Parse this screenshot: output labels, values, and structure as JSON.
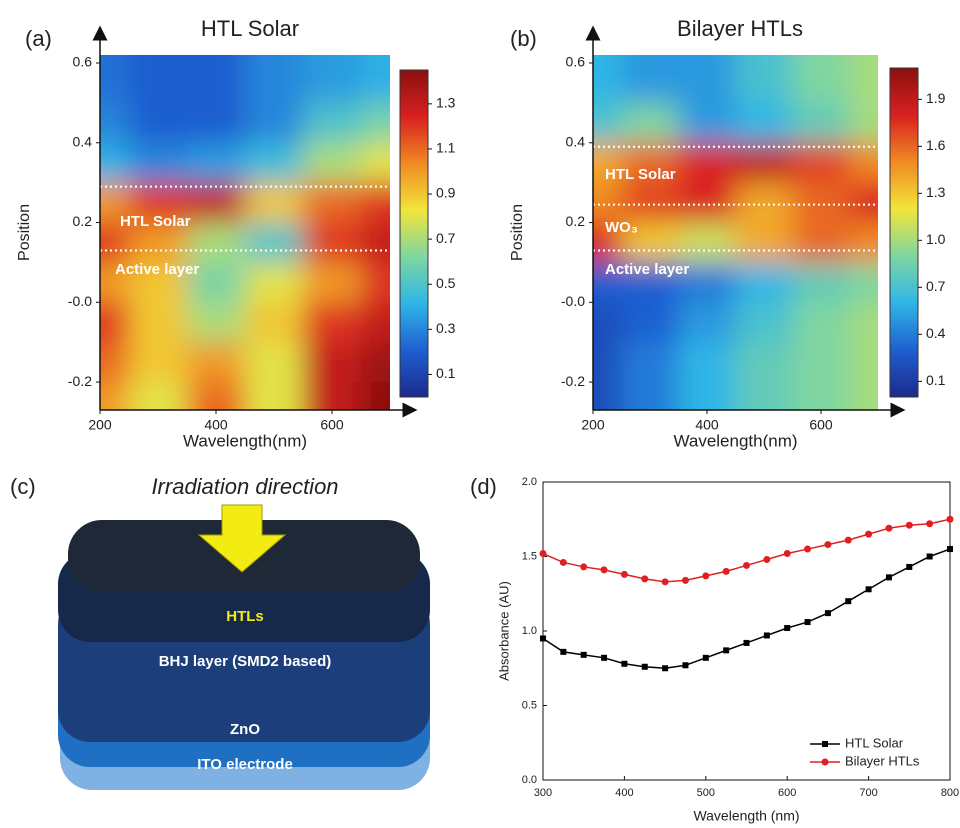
{
  "panels": [
    "(a)",
    "(b)",
    "(c)",
    "(d)"
  ],
  "chart_data": [
    {
      "type": "heatmap",
      "title": "HTL Solar",
      "xlabel": "Wavelength(nm)",
      "ylabel": "Position",
      "x": [
        200,
        300,
        400,
        500,
        600,
        700
      ],
      "y": [
        0.55,
        0.45,
        0.35,
        0.25,
        0.15,
        0.05,
        -0.05,
        -0.15,
        -0.25
      ],
      "z": [
        [
          0.25,
          0.2,
          0.2,
          0.3,
          0.35,
          0.4
        ],
        [
          0.3,
          0.2,
          0.2,
          0.3,
          0.5,
          0.6
        ],
        [
          0.4,
          0.3,
          0.35,
          0.45,
          0.7,
          0.8
        ],
        [
          1.0,
          1.2,
          1.3,
          0.9,
          1.1,
          1.2
        ],
        [
          1.2,
          1.0,
          0.7,
          0.5,
          1.2,
          1.3
        ],
        [
          1.0,
          0.9,
          0.6,
          0.8,
          1.0,
          1.2
        ],
        [
          1.2,
          0.9,
          0.7,
          0.9,
          1.2,
          1.3
        ],
        [
          1.1,
          0.9,
          1.0,
          0.8,
          1.3,
          1.4
        ],
        [
          1.0,
          0.8,
          1.1,
          0.8,
          1.3,
          1.45
        ]
      ],
      "xlim": [
        200,
        700
      ],
      "ylim": [
        -0.27,
        0.62
      ],
      "xticks": [
        200,
        400,
        600
      ],
      "yticks": [
        -0.2,
        {
          "value": 0,
          "label": "-0.0"
        },
        0.2,
        0.4,
        0.6
      ],
      "zlim": [
        0,
        1.45
      ],
      "zticks": [
        0.1,
        0.3,
        0.5,
        0.7,
        0.9,
        1.1,
        1.3
      ],
      "colors": [
        "#1c2a8c",
        "#1f5fd1",
        "#2fb6e6",
        "#7fd6a0",
        "#f2e53a",
        "#f08a22",
        "#d92020",
        "#8b1010"
      ],
      "annotations": [
        "HTL Solar",
        "Active layer"
      ],
      "boundaries": [
        0.29,
        0.13
      ]
    },
    {
      "type": "heatmap",
      "title": "Bilayer HTLs",
      "xlabel": "Wavelength(nm)",
      "ylabel": "Position",
      "x": [
        200,
        300,
        400,
        500,
        600,
        700
      ],
      "y": [
        0.55,
        0.45,
        0.35,
        0.25,
        0.15,
        0.05,
        -0.05,
        -0.15,
        -0.25
      ],
      "z": [
        [
          0.6,
          0.5,
          0.5,
          0.7,
          0.9,
          1.0
        ],
        [
          0.7,
          0.9,
          0.5,
          0.6,
          0.8,
          1.0
        ],
        [
          1.4,
          1.6,
          1.8,
          1.9,
          1.7,
          1.5
        ],
        [
          1.5,
          1.7,
          1.8,
          1.4,
          1.6,
          1.8
        ],
        [
          1.8,
          1.3,
          1.1,
          1.4,
          1.6,
          1.5
        ],
        [
          0.3,
          0.3,
          0.4,
          0.6,
          0.8,
          0.9
        ],
        [
          0.2,
          0.3,
          0.5,
          0.7,
          0.9,
          1.0
        ],
        [
          0.2,
          0.4,
          0.6,
          0.8,
          0.9,
          1.0
        ],
        [
          0.2,
          0.4,
          0.6,
          0.8,
          0.9,
          1.0
        ]
      ],
      "xlim": [
        200,
        700
      ],
      "ylim": [
        -0.27,
        0.62
      ],
      "xticks": [
        200,
        400,
        600
      ],
      "yticks": [
        -0.2,
        {
          "value": 0,
          "label": "-0.0"
        },
        0.2,
        0.4,
        0.6
      ],
      "zlim": [
        0,
        2.1
      ],
      "zticks": [
        0.1,
        0.4,
        0.7,
        {
          "value": 1,
          "label": "1.0"
        },
        1.3,
        1.6,
        1.9
      ],
      "colors": [
        "#1c2a8c",
        "#1f5fd1",
        "#2fb6e6",
        "#7fd6a0",
        "#f2e53a",
        "#f08a22",
        "#d92020",
        "#8b1010"
      ],
      "annotations": [
        "HTL Solar",
        "WO₃",
        "Active layer"
      ],
      "boundaries": [
        0.39,
        0.245,
        0.13
      ]
    },
    {
      "type": "line",
      "xlabel": "Wavelength (nm)",
      "ylabel": "Absorbance (AU)",
      "x": [
        300,
        325,
        350,
        375,
        400,
        425,
        450,
        475,
        500,
        525,
        550,
        575,
        600,
        625,
        650,
        675,
        700,
        725,
        750,
        775,
        800
      ],
      "series": [
        {
          "name": "HTL Solar",
          "color": "#000000",
          "marker": "square",
          "values": [
            0.95,
            0.86,
            0.84,
            0.82,
            0.78,
            0.76,
            0.75,
            0.77,
            0.82,
            0.87,
            0.92,
            0.97,
            1.02,
            1.06,
            1.12,
            1.2,
            1.28,
            1.36,
            1.43,
            1.5,
            1.55
          ]
        },
        {
          "name": "Bilayer HTLs",
          "color": "#e02020",
          "marker": "circle",
          "values": [
            1.52,
            1.46,
            1.43,
            1.41,
            1.38,
            1.35,
            1.33,
            1.34,
            1.37,
            1.4,
            1.44,
            1.48,
            1.52,
            1.55,
            1.58,
            1.61,
            1.65,
            1.69,
            1.71,
            1.72,
            1.75
          ]
        }
      ],
      "xlim": [
        300,
        800
      ],
      "ylim": [
        0,
        2
      ],
      "xticks": [
        300,
        400,
        500,
        600,
        700,
        800
      ],
      "yticks": [
        {
          "value": 0,
          "label": "0.0"
        },
        0.5,
        {
          "value": 1,
          "label": "1.0"
        },
        1.5,
        {
          "value": 2,
          "label": "2.0"
        }
      ],
      "legend": "lower right"
    }
  ],
  "diagram": {
    "arrow_label": "Irradiation direction",
    "layers": [
      "HTLs",
      "BHJ layer (SMD2 based)",
      "ZnO",
      "ITO electrode"
    ]
  }
}
